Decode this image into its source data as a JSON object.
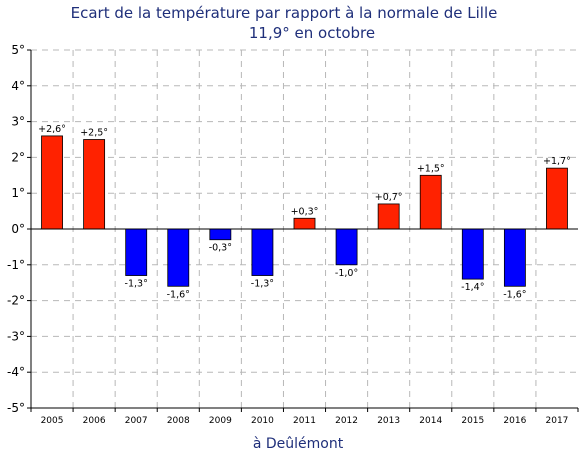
{
  "chart_data": {
    "type": "bar",
    "title": "Ecart de la température par rapport à la normale de Lille",
    "subtitle": "11,9° en octobre",
    "xlabel": "à Deûlémont",
    "ylabel": "",
    "ylim": [
      -5,
      5
    ],
    "yticks": [
      "-5°",
      "-4°",
      "-3°",
      "-2°",
      "-1°",
      "0°",
      "1°",
      "2°",
      "3°",
      "4°",
      "5°"
    ],
    "yticks_values": [
      -5,
      -4,
      -3,
      -2,
      -1,
      0,
      1,
      2,
      3,
      4,
      5
    ],
    "grid": true,
    "categories": [
      "2005",
      "2006",
      "2007",
      "2008",
      "2009",
      "2010",
      "2011",
      "2012",
      "2013",
      "2014",
      "2015",
      "2016",
      "2017"
    ],
    "values": [
      2.6,
      2.5,
      -1.3,
      -1.6,
      -0.3,
      -1.3,
      0.3,
      -1.0,
      0.7,
      1.5,
      -1.4,
      -1.6,
      1.7
    ],
    "data_labels": [
      "+2,6°",
      "+2,5°",
      "-1,3°",
      "-1,6°",
      "-0,3°",
      "-1,3°",
      "+0,3°",
      "-1,0°",
      "+0,7°",
      "+1,5°",
      "-1,4°",
      "-1,6°",
      "+1,7°"
    ],
    "colors": {
      "positive": "#ff2200",
      "negative": "#0000ff",
      "title": "#1f2f7a",
      "grid": "#b8b8b8"
    }
  }
}
